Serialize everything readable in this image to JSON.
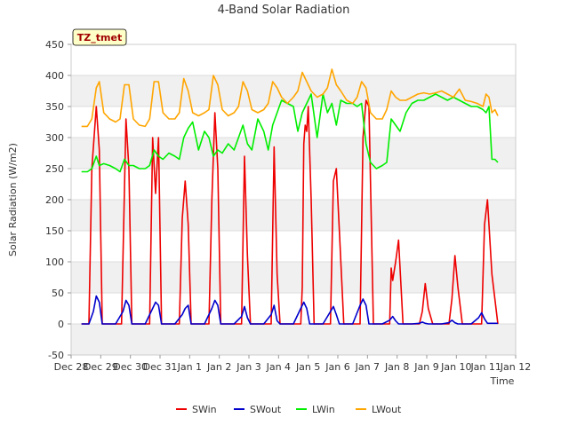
{
  "chart_data": {
    "type": "line",
    "title": "4-Band Solar Radiation",
    "xlabel": "Time",
    "ylabel": "Solar Radiation (W/m2)",
    "badge": "TZ_tmet",
    "xlim": [
      0,
      15
    ],
    "ylim": [
      -50,
      450
    ],
    "x_ticks": [
      {
        "x": 0,
        "label": "Dec 28"
      },
      {
        "x": 1,
        "label": "Dec 29"
      },
      {
        "x": 2,
        "label": "Dec 30"
      },
      {
        "x": 3,
        "label": "Dec 31"
      },
      {
        "x": 4,
        "label": "Jan 1"
      },
      {
        "x": 5,
        "label": "Jan 2"
      },
      {
        "x": 6,
        "label": "Jan 3"
      },
      {
        "x": 7,
        "label": "Jan 4"
      },
      {
        "x": 8,
        "label": "Jan 5"
      },
      {
        "x": 9,
        "label": "Jan 6"
      },
      {
        "x": 10,
        "label": "Jan 7"
      },
      {
        "x": 11,
        "label": "Jan 8"
      },
      {
        "x": 12,
        "label": "Jan 9"
      },
      {
        "x": 13,
        "label": "Jan 10"
      },
      {
        "x": 14,
        "label": "Jan 11"
      },
      {
        "x": 15,
        "label": "Jan 12"
      }
    ],
    "y_ticks": [
      -50,
      0,
      50,
      100,
      150,
      200,
      250,
      300,
      350,
      400,
      450
    ],
    "x_unit_note": "days since Dec 28",
    "legend_position": "bottom",
    "series": [
      {
        "name": "SWin",
        "color": "#ee0000",
        "x": [
          0.35,
          0.6,
          0.7,
          0.85,
          0.95,
          1.05,
          1.2,
          1.4,
          1.55,
          1.7,
          1.85,
          1.95,
          2.05,
          2.2,
          2.35,
          2.5,
          2.65,
          2.75,
          2.85,
          2.95,
          3.05,
          3.2,
          3.4,
          3.65,
          3.75,
          3.85,
          3.95,
          4.05,
          4.2,
          4.4,
          4.65,
          4.75,
          4.85,
          4.95,
          5.05,
          5.2,
          5.4,
          5.65,
          5.75,
          5.85,
          5.95,
          6.05,
          6.2,
          6.4,
          6.65,
          6.75,
          6.85,
          6.95,
          7.05,
          7.2,
          7.4,
          7.65,
          7.75,
          7.8,
          7.85,
          7.9,
          7.95,
          8.0,
          8.1,
          8.2,
          8.4,
          8.65,
          8.75,
          8.85,
          8.95,
          9.05,
          9.2,
          9.4,
          9.65,
          9.75,
          9.85,
          9.95,
          10.05,
          10.2,
          10.4,
          10.65,
          10.75,
          10.8,
          10.85,
          10.95,
          11.05,
          11.2,
          11.4,
          11.65,
          11.75,
          11.85,
          11.95,
          12.05,
          12.2,
          12.4,
          12.65,
          12.75,
          12.85,
          12.95,
          13.05,
          13.2,
          13.4,
          13.65,
          13.75,
          13.85,
          13.95,
          14.05,
          14.2,
          14.4
        ],
        "y": [
          0,
          0,
          250,
          350,
          280,
          0,
          0,
          0,
          0,
          0,
          330,
          250,
          0,
          0,
          0,
          0,
          0,
          300,
          210,
          300,
          0,
          0,
          0,
          0,
          170,
          230,
          160,
          0,
          0,
          0,
          0,
          200,
          340,
          250,
          0,
          0,
          0,
          0,
          0,
          270,
          110,
          0,
          0,
          0,
          0,
          0,
          285,
          80,
          0,
          0,
          0,
          0,
          0,
          60,
          290,
          320,
          310,
          350,
          200,
          0,
          0,
          0,
          0,
          230,
          250,
          150,
          0,
          0,
          0,
          0,
          300,
          360,
          350,
          0,
          0,
          0,
          0,
          90,
          70,
          100,
          135,
          0,
          0,
          0,
          0,
          20,
          65,
          25,
          0,
          0,
          0,
          0,
          40,
          110,
          60,
          0,
          0,
          0,
          0,
          0,
          160,
          200,
          80,
          0
        ]
      },
      {
        "name": "SWout",
        "color": "#0000cc",
        "x": [
          0.35,
          0.6,
          0.75,
          0.85,
          0.95,
          1.05,
          1.2,
          1.5,
          1.75,
          1.85,
          1.95,
          2.05,
          2.2,
          2.5,
          2.75,
          2.85,
          2.95,
          3.05,
          3.2,
          3.5,
          3.75,
          3.85,
          3.95,
          4.05,
          4.2,
          4.5,
          4.75,
          4.85,
          4.95,
          5.05,
          5.2,
          5.5,
          5.75,
          5.85,
          5.95,
          6.05,
          6.2,
          6.5,
          6.75,
          6.85,
          6.95,
          7.05,
          7.2,
          7.5,
          7.75,
          7.85,
          7.95,
          8.05,
          8.2,
          8.5,
          8.75,
          8.85,
          8.95,
          9.05,
          9.2,
          9.5,
          9.75,
          9.85,
          9.95,
          10.05,
          10.2,
          10.5,
          10.75,
          10.85,
          10.95,
          11.05,
          11.2,
          11.5,
          11.75,
          11.85,
          11.95,
          12.05,
          12.2,
          12.5,
          12.75,
          12.85,
          12.95,
          13.05,
          13.2,
          13.5,
          13.75,
          13.85,
          13.95,
          14.05,
          14.2,
          14.4
        ],
        "y": [
          0,
          0,
          20,
          45,
          35,
          0,
          0,
          0,
          20,
          38,
          30,
          0,
          0,
          0,
          25,
          35,
          30,
          0,
          0,
          0,
          15,
          25,
          30,
          0,
          0,
          0,
          25,
          38,
          30,
          0,
          0,
          0,
          12,
          28,
          10,
          0,
          0,
          0,
          15,
          30,
          5,
          0,
          0,
          0,
          25,
          35,
          25,
          0,
          0,
          0,
          20,
          28,
          15,
          0,
          0,
          0,
          30,
          40,
          30,
          0,
          0,
          0,
          6,
          12,
          5,
          0,
          0,
          0,
          1,
          3,
          1,
          0,
          0,
          0,
          2,
          6,
          2,
          0,
          0,
          0,
          10,
          18,
          8,
          1,
          1,
          1
        ]
      },
      {
        "name": "LWin",
        "color": "#00ee00",
        "x": [
          0.35,
          0.55,
          0.7,
          0.85,
          0.95,
          1.1,
          1.3,
          1.5,
          1.65,
          1.8,
          1.95,
          2.1,
          2.3,
          2.5,
          2.65,
          2.8,
          2.95,
          3.1,
          3.3,
          3.5,
          3.65,
          3.8,
          3.95,
          4.1,
          4.3,
          4.5,
          4.65,
          4.8,
          4.95,
          5.1,
          5.3,
          5.5,
          5.65,
          5.8,
          5.95,
          6.1,
          6.3,
          6.5,
          6.65,
          6.8,
          6.95,
          7.1,
          7.3,
          7.5,
          7.65,
          7.8,
          7.95,
          8.1,
          8.3,
          8.5,
          8.65,
          8.8,
          8.95,
          9.1,
          9.3,
          9.5,
          9.65,
          9.8,
          9.95,
          10.1,
          10.3,
          10.5,
          10.65,
          10.8,
          10.95,
          11.1,
          11.3,
          11.5,
          11.7,
          11.9,
          12.1,
          12.3,
          12.5,
          12.7,
          12.9,
          13.1,
          13.3,
          13.5,
          13.7,
          13.9,
          14.0,
          14.1,
          14.2,
          14.3,
          14.4
        ],
        "y": [
          245,
          245,
          250,
          270,
          255,
          258,
          255,
          250,
          245,
          265,
          255,
          255,
          250,
          250,
          255,
          280,
          270,
          265,
          275,
          270,
          265,
          300,
          315,
          325,
          280,
          310,
          300,
          270,
          280,
          275,
          290,
          280,
          300,
          320,
          290,
          280,
          330,
          310,
          280,
          320,
          340,
          360,
          355,
          350,
          310,
          340,
          355,
          370,
          300,
          370,
          340,
          355,
          320,
          360,
          355,
          355,
          350,
          355,
          290,
          260,
          250,
          255,
          260,
          330,
          320,
          310,
          340,
          355,
          360,
          360,
          365,
          370,
          365,
          360,
          365,
          360,
          355,
          350,
          350,
          345,
          340,
          350,
          265,
          265,
          260
        ]
      },
      {
        "name": "LWout",
        "color": "#ffa500",
        "x": [
          0.35,
          0.55,
          0.7,
          0.85,
          0.95,
          1.1,
          1.3,
          1.5,
          1.65,
          1.8,
          1.95,
          2.1,
          2.3,
          2.5,
          2.65,
          2.8,
          2.95,
          3.1,
          3.3,
          3.5,
          3.65,
          3.8,
          3.95,
          4.1,
          4.3,
          4.5,
          4.65,
          4.8,
          4.95,
          5.1,
          5.3,
          5.5,
          5.65,
          5.8,
          5.95,
          6.1,
          6.3,
          6.5,
          6.65,
          6.8,
          6.95,
          7.1,
          7.3,
          7.5,
          7.65,
          7.8,
          7.95,
          8.1,
          8.3,
          8.5,
          8.65,
          8.8,
          8.95,
          9.1,
          9.3,
          9.5,
          9.65,
          9.8,
          9.95,
          10.1,
          10.3,
          10.5,
          10.65,
          10.8,
          10.95,
          11.1,
          11.3,
          11.5,
          11.7,
          11.9,
          12.1,
          12.3,
          12.5,
          12.7,
          12.9,
          13.1,
          13.3,
          13.5,
          13.7,
          13.9,
          14.0,
          14.1,
          14.2,
          14.3,
          14.4
        ],
        "y": [
          318,
          318,
          330,
          380,
          390,
          340,
          330,
          325,
          330,
          385,
          385,
          330,
          320,
          318,
          330,
          390,
          390,
          340,
          330,
          330,
          340,
          395,
          375,
          340,
          335,
          340,
          345,
          400,
          385,
          345,
          335,
          340,
          350,
          390,
          375,
          345,
          340,
          345,
          355,
          390,
          380,
          365,
          355,
          365,
          375,
          405,
          390,
          375,
          365,
          370,
          380,
          410,
          385,
          375,
          360,
          355,
          365,
          390,
          380,
          340,
          330,
          330,
          345,
          375,
          365,
          360,
          360,
          365,
          370,
          372,
          370,
          372,
          375,
          370,
          365,
          378,
          360,
          358,
          355,
          350,
          370,
          365,
          340,
          345,
          335
        ]
      }
    ]
  }
}
